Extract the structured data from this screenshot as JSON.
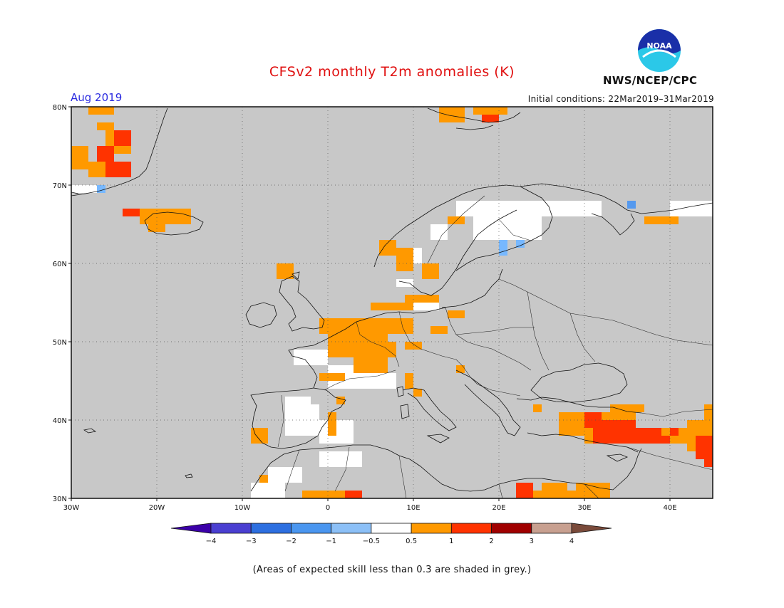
{
  "title": "CFSv2 monthly T2m anomalies (K)",
  "valid_date": "Aug 2019",
  "initial_conditions": "Initial conditions: 22Mar2019–31Mar2019",
  "agency": "NWS/NCEP/CPC",
  "logo_text": "NOAA",
  "footnote": "(Areas of expected skill less than 0.3 are shaded in grey.)",
  "map": {
    "lon_range": [
      -30,
      45
    ],
    "lat_range": [
      30,
      80
    ],
    "lon_ticks": [
      {
        "value": -30,
        "label": "30W"
      },
      {
        "value": -20,
        "label": "20W"
      },
      {
        "value": -10,
        "label": "10W"
      },
      {
        "value": 0,
        "label": "0"
      },
      {
        "value": 10,
        "label": "10E"
      },
      {
        "value": 20,
        "label": "20E"
      },
      {
        "value": 30,
        "label": "30E"
      },
      {
        "value": 40,
        "label": "40E"
      }
    ],
    "lat_ticks": [
      {
        "value": 30,
        "label": "30N"
      },
      {
        "value": 40,
        "label": "40N"
      },
      {
        "value": 50,
        "label": "50N"
      },
      {
        "value": 60,
        "label": "60N"
      },
      {
        "value": 70,
        "label": "70N"
      },
      {
        "value": 80,
        "label": "80N"
      }
    ],
    "background_color": "#c8c8c8",
    "anomaly_cells": [
      {
        "lon": -28,
        "lat": 79,
        "w": 3,
        "h": 1,
        "color": "#ff9900"
      },
      {
        "lon": -27,
        "lat": 77,
        "w": 2,
        "h": 1,
        "color": "#ff9900"
      },
      {
        "lon": -26,
        "lat": 74,
        "w": 3,
        "h": 3,
        "color": "#ff9900"
      },
      {
        "lon": -25,
        "lat": 75,
        "w": 2,
        "h": 2,
        "color": "#ff3300"
      },
      {
        "lon": -27,
        "lat": 73,
        "w": 2,
        "h": 2,
        "color": "#ff3300"
      },
      {
        "lon": -30,
        "lat": 72,
        "w": 2,
        "h": 3,
        "color": "#ff9900"
      },
      {
        "lon": -28,
        "lat": 71,
        "w": 4,
        "h": 2,
        "color": "#ff9900"
      },
      {
        "lon": -26,
        "lat": 71,
        "w": 3,
        "h": 2,
        "color": "#ff3300"
      },
      {
        "lon": -30,
        "lat": 69,
        "w": 3,
        "h": 1,
        "color": "#ffffff"
      },
      {
        "lon": -27,
        "lat": 69,
        "w": 1,
        "h": 1,
        "color": "#77b8ff"
      },
      {
        "lon": -24,
        "lat": 66,
        "w": 2,
        "h": 1,
        "color": "#ff3300"
      },
      {
        "lon": -22,
        "lat": 65,
        "w": 6,
        "h": 2,
        "color": "#ff9900"
      },
      {
        "lon": -21,
        "lat": 64,
        "w": 2,
        "h": 1,
        "color": "#ff9900"
      },
      {
        "lon": -6,
        "lat": 58,
        "w": 2,
        "h": 2,
        "color": "#ff9900"
      },
      {
        "lon": 6,
        "lat": 61,
        "w": 2,
        "h": 2,
        "color": "#ff9900"
      },
      {
        "lon": 8,
        "lat": 59,
        "w": 2,
        "h": 3,
        "color": "#ff9900"
      },
      {
        "lon": 10,
        "lat": 60,
        "w": 1,
        "h": 2,
        "color": "#ffffff"
      },
      {
        "lon": 11,
        "lat": 58,
        "w": 2,
        "h": 2,
        "color": "#ff9900"
      },
      {
        "lon": 8,
        "lat": 57,
        "w": 2,
        "h": 1,
        "color": "#ffffff"
      },
      {
        "lon": 12,
        "lat": 63,
        "w": 2,
        "h": 2,
        "color": "#ffffff"
      },
      {
        "lon": 14,
        "lat": 65,
        "w": 2,
        "h": 1,
        "color": "#ff9900"
      },
      {
        "lon": 15,
        "lat": 66,
        "w": 12,
        "h": 2,
        "color": "#ffffff"
      },
      {
        "lon": 17,
        "lat": 63,
        "w": 8,
        "h": 3,
        "color": "#ffffff"
      },
      {
        "lon": 20,
        "lat": 61,
        "w": 1,
        "h": 2,
        "color": "#77b8ff"
      },
      {
        "lon": 22,
        "lat": 62,
        "w": 1,
        "h": 1,
        "color": "#77b8ff"
      },
      {
        "lon": 27,
        "lat": 66,
        "w": 5,
        "h": 2,
        "color": "#ffffff"
      },
      {
        "lon": 35,
        "lat": 67,
        "w": 1,
        "h": 1,
        "color": "#5599ee"
      },
      {
        "lon": 37,
        "lat": 65,
        "w": 2,
        "h": 1,
        "color": "#ff9900"
      },
      {
        "lon": 39,
        "lat": 65,
        "w": 2,
        "h": 1,
        "color": "#ff9900"
      },
      {
        "lon": 40,
        "lat": 66,
        "w": 5,
        "h": 2,
        "color": "#ffffff"
      },
      {
        "lon": 9,
        "lat": 55,
        "w": 4,
        "h": 1,
        "color": "#ff9900"
      },
      {
        "lon": 5,
        "lat": 54,
        "w": 7,
        "h": 1,
        "color": "#ff9900"
      },
      {
        "lon": 10,
        "lat": 54,
        "w": 3,
        "h": 1,
        "color": "#ffffff"
      },
      {
        "lon": 1,
        "lat": 51,
        "w": 9,
        "h": 2,
        "color": "#ff9900"
      },
      {
        "lon": 0,
        "lat": 48,
        "w": 7,
        "h": 3,
        "color": "#ff9900"
      },
      {
        "lon": 5,
        "lat": 48,
        "w": 3,
        "h": 2,
        "color": "#ff9900"
      },
      {
        "lon": 3,
        "lat": 46,
        "w": 4,
        "h": 2,
        "color": "#ff9900"
      },
      {
        "lon": -1,
        "lat": 51,
        "w": 2,
        "h": 2,
        "color": "#ff9900"
      },
      {
        "lon": 9,
        "lat": 49,
        "w": 2,
        "h": 1,
        "color": "#ff9900"
      },
      {
        "lon": 12,
        "lat": 51,
        "w": 2,
        "h": 1,
        "color": "#ff9900"
      },
      {
        "lon": 14,
        "lat": 53,
        "w": 2,
        "h": 1,
        "color": "#ff9900"
      },
      {
        "lon": -4,
        "lat": 47,
        "w": 4,
        "h": 2,
        "color": "#ffffff"
      },
      {
        "lon": 0,
        "lat": 44,
        "w": 3,
        "h": 3,
        "color": "#ffffff"
      },
      {
        "lon": 3,
        "lat": 44,
        "w": 5,
        "h": 2,
        "color": "#ffffff"
      },
      {
        "lon": -1,
        "lat": 45,
        "w": 3,
        "h": 1,
        "color": "#ff9900"
      },
      {
        "lon": 9,
        "lat": 44,
        "w": 1,
        "h": 2,
        "color": "#ff9900"
      },
      {
        "lon": 10,
        "lat": 43,
        "w": 1,
        "h": 1,
        "color": "#ff9900"
      },
      {
        "lon": 15,
        "lat": 46,
        "w": 1,
        "h": 1,
        "color": "#ff9900"
      },
      {
        "lon": -5,
        "lat": 42,
        "w": 3,
        "h": 1,
        "color": "#ffffff"
      },
      {
        "lon": -5,
        "lat": 38,
        "w": 4,
        "h": 4,
        "color": "#ffffff"
      },
      {
        "lon": -1,
        "lat": 37,
        "w": 4,
        "h": 3,
        "color": "#ffffff"
      },
      {
        "lon": 0,
        "lat": 40,
        "w": 1,
        "h": 1,
        "color": "#ff9900"
      },
      {
        "lon": 0,
        "lat": 38,
        "w": 1,
        "h": 2,
        "color": "#ff9900"
      },
      {
        "lon": 1,
        "lat": 42,
        "w": 1,
        "h": 1,
        "color": "#ff9900"
      },
      {
        "lon": -9,
        "lat": 37,
        "w": 2,
        "h": 2,
        "color": "#ff9900"
      },
      {
        "lon": -1,
        "lat": 34,
        "w": 5,
        "h": 2,
        "color": "#ffffff"
      },
      {
        "lon": -7,
        "lat": 32,
        "w": 4,
        "h": 2,
        "color": "#ffffff"
      },
      {
        "lon": -9,
        "lat": 30,
        "w": 4,
        "h": 2,
        "color": "#ffffff"
      },
      {
        "lon": -8,
        "lat": 32,
        "w": 1,
        "h": 1,
        "color": "#ff9900"
      },
      {
        "lon": 2,
        "lat": 30,
        "w": 2,
        "h": 1,
        "color": "#ff3300"
      },
      {
        "lon": -3,
        "lat": 30,
        "w": 5,
        "h": 1,
        "color": "#ff9900"
      },
      {
        "lon": 24,
        "lat": 41,
        "w": 1,
        "h": 1,
        "color": "#ff9900"
      },
      {
        "lon": 27,
        "lat": 38,
        "w": 9,
        "h": 3,
        "color": "#ff9900"
      },
      {
        "lon": 30,
        "lat": 37,
        "w": 12,
        "h": 2,
        "color": "#ff9900"
      },
      {
        "lon": 30,
        "lat": 39,
        "w": 2,
        "h": 2,
        "color": "#ff3300"
      },
      {
        "lon": 31,
        "lat": 37,
        "w": 5,
        "h": 3,
        "color": "#ff3300"
      },
      {
        "lon": 35,
        "lat": 37,
        "w": 4,
        "h": 2,
        "color": "#ff3300"
      },
      {
        "lon": 38,
        "lat": 37,
        "w": 2,
        "h": 1,
        "color": "#ff3300"
      },
      {
        "lon": 33,
        "lat": 41,
        "w": 4,
        "h": 1,
        "color": "#ff9900"
      },
      {
        "lon": 40,
        "lat": 38,
        "w": 1,
        "h": 1,
        "color": "#ff3300"
      },
      {
        "lon": 41,
        "lat": 38,
        "w": 1,
        "h": 1,
        "color": "#ff9900"
      },
      {
        "lon": 42,
        "lat": 36,
        "w": 3,
        "h": 4,
        "color": "#ff9900"
      },
      {
        "lon": 43,
        "lat": 35,
        "w": 2,
        "h": 3,
        "color": "#ff3300"
      },
      {
        "lon": 44,
        "lat": 34,
        "w": 1,
        "h": 2,
        "color": "#ff3300"
      },
      {
        "lon": 44,
        "lat": 40,
        "w": 1,
        "h": 2,
        "color": "#ff9900"
      },
      {
        "lon": 22,
        "lat": 30,
        "w": 2,
        "h": 2,
        "color": "#ff3300"
      },
      {
        "lon": 24,
        "lat": 30,
        "w": 9,
        "h": 1,
        "color": "#ff9900"
      },
      {
        "lon": 25,
        "lat": 31,
        "w": 3,
        "h": 1,
        "color": "#ff9900"
      },
      {
        "lon": 29,
        "lat": 30,
        "w": 4,
        "h": 2,
        "color": "#ff9900"
      },
      {
        "lon": 13,
        "lat": 78,
        "w": 3,
        "h": 2,
        "color": "#ff9900"
      },
      {
        "lon": 17,
        "lat": 79,
        "w": 4,
        "h": 1,
        "color": "#ff9900"
      },
      {
        "lon": 18,
        "lat": 78,
        "w": 2,
        "h": 1,
        "color": "#ff3300"
      }
    ]
  },
  "colorbar": {
    "colors": [
      "#3b00a8",
      "#4a3fd1",
      "#2d6fe0",
      "#4a96f0",
      "#8cc0f7",
      "#ffffff",
      "#ff9900",
      "#ff3300",
      "#a00000",
      "#c8a090",
      "#7a4a3a"
    ],
    "labels": [
      "−4",
      "−3",
      "−2",
      "−1",
      "−0.5",
      "0.5",
      "1",
      "2",
      "3",
      "4"
    ]
  }
}
